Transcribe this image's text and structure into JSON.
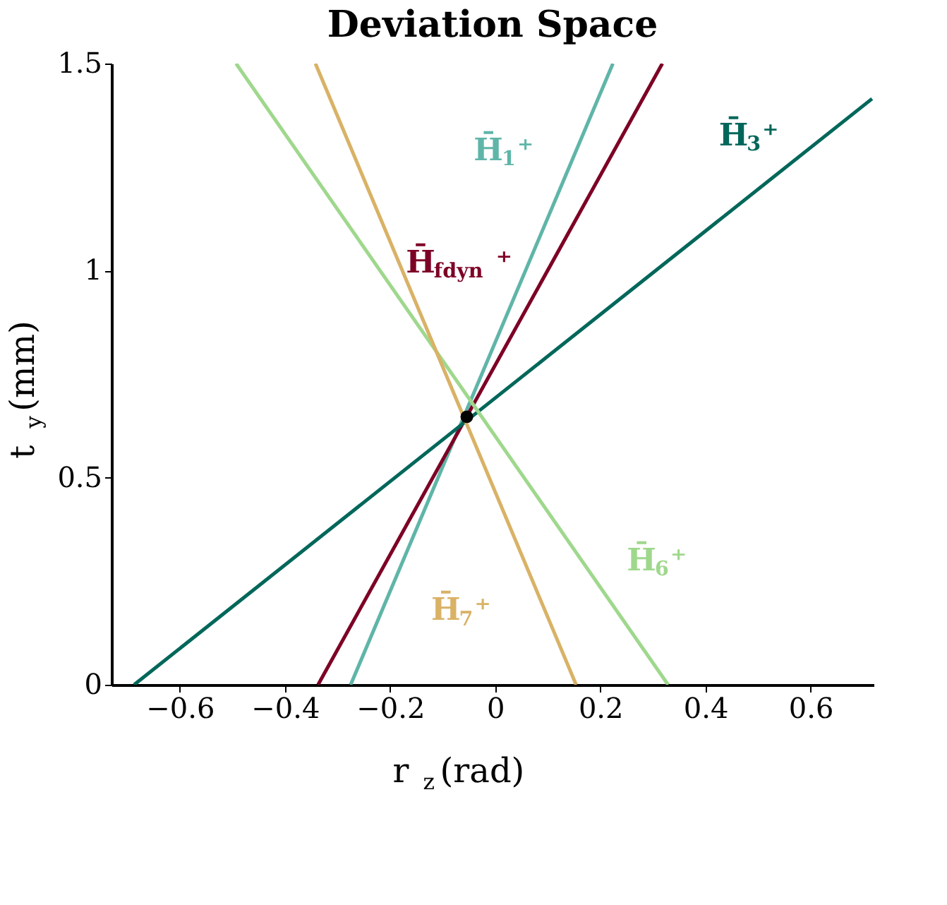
{
  "chart_data": {
    "type": "line",
    "title": "Deviation Space",
    "xlabel": "r$_{z}$(rad)",
    "ylabel": "t$_{y}$(mm)",
    "xlim": [
      -0.73,
      0.72
    ],
    "ylim": [
      0,
      1.5
    ],
    "xticks": [
      -0.6,
      -0.4,
      -0.2,
      0,
      0.2,
      0.4,
      0.6
    ],
    "yticks": [
      0,
      0.5,
      1,
      1.5
    ],
    "grid": false,
    "series": [
      {
        "name": "H̄$_{1}$⁺",
        "color": "#5fb5a8",
        "x": [
          -0.275,
          0.224
        ],
        "values": [
          0,
          1.5
        ]
      },
      {
        "name": "H̄$_{fdyn}$⁺",
        "color": "#7d0025",
        "x": [
          -0.337,
          0.318
        ],
        "values": [
          0,
          1.5
        ]
      },
      {
        "name": "H̄$_{3}$⁺",
        "color": "#00675a",
        "x": [
          -0.687,
          0.717
        ],
        "values": [
          0,
          1.415
        ]
      },
      {
        "name": "H̄$_{6}$⁺",
        "color": "#9fd88d",
        "x": [
          -0.493,
          0.329
        ],
        "values": [
          1.5,
          0
        ]
      },
      {
        "name": "H̄$_{7}$⁺",
        "color": "#d9b266",
        "x": [
          -0.342,
          0.154
        ],
        "values": [
          1.5,
          0
        ]
      },
      {
        "type": "scatter",
        "color": "#000000",
        "marker": "circle",
        "x": [
          -0.054
        ],
        "values": [
          0.647
        ]
      }
    ]
  }
}
